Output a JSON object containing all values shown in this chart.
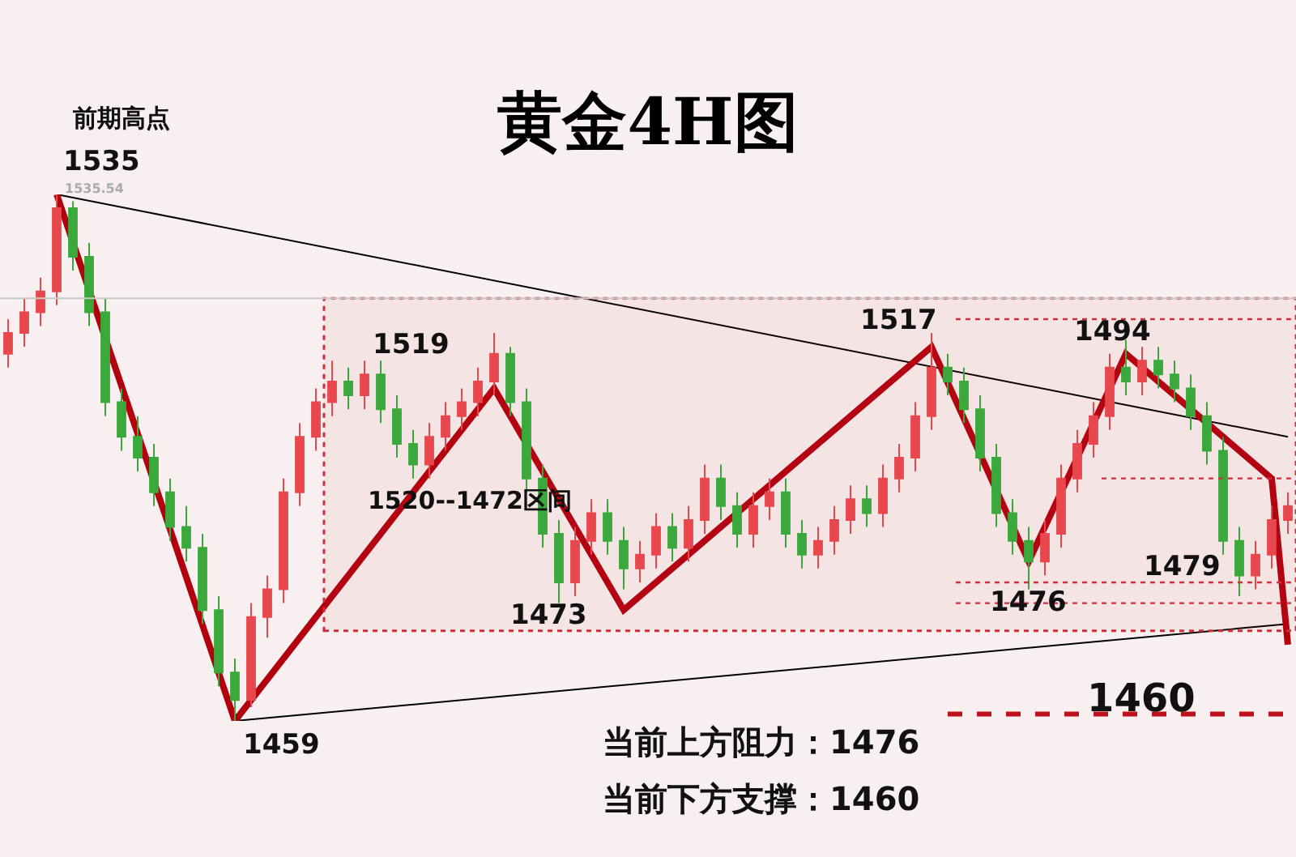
{
  "chart_data": {
    "type": "candlestick",
    "title": "黄金4H图",
    "categories": [
      null,
      null,
      null,
      null,
      null,
      null,
      null,
      null,
      null,
      null,
      null,
      null,
      null,
      null,
      null,
      null,
      null,
      null,
      null,
      null,
      null,
      null,
      null,
      null,
      null,
      null,
      null,
      null,
      null,
      null,
      null,
      null,
      null,
      null,
      null,
      null,
      null,
      null,
      null,
      null,
      null,
      null,
      null,
      null,
      null,
      null,
      null,
      null,
      null,
      null,
      null,
      null,
      null,
      null,
      null,
      null,
      null,
      null,
      null,
      null,
      null,
      null,
      null,
      null,
      null,
      null,
      null,
      null,
      null,
      null,
      null,
      null,
      null,
      null,
      null,
      null,
      null,
      null,
      null,
      null
    ],
    "series": [
      {
        "ohlc": [
          [
            1512,
            1517,
            1510,
            1515
          ],
          [
            1515,
            1520,
            1513,
            1518
          ],
          [
            1518,
            1523,
            1516,
            1521
          ],
          [
            1521,
            1535,
            1519,
            1533
          ],
          [
            1533,
            1534,
            1524,
            1526
          ],
          [
            1526,
            1528,
            1516,
            1518
          ],
          [
            1518,
            1520,
            1503,
            1505
          ],
          [
            1505,
            1507,
            1498,
            1500
          ],
          [
            1500,
            1503,
            1495,
            1497
          ],
          [
            1497,
            1499,
            1490,
            1492
          ],
          [
            1492,
            1494,
            1485,
            1487
          ],
          [
            1487,
            1490,
            1482,
            1484
          ],
          [
            1484,
            1486,
            1473,
            1475
          ],
          [
            1475,
            1477,
            1464,
            1466
          ],
          [
            1466,
            1468,
            1459,
            1462
          ],
          [
            1462,
            1476,
            1461,
            1474
          ],
          [
            1474,
            1480,
            1471,
            1478
          ],
          [
            1478,
            1494,
            1476,
            1492
          ],
          [
            1492,
            1502,
            1490,
            1500
          ],
          [
            1500,
            1507,
            1498,
            1505
          ],
          [
            1505,
            1511,
            1503,
            1508
          ],
          [
            1508,
            1510,
            1504,
            1506
          ],
          [
            1506,
            1511,
            1504,
            1509
          ],
          [
            1509,
            1511,
            1502,
            1504
          ],
          [
            1504,
            1506,
            1497,
            1499
          ],
          [
            1499,
            1501,
            1494,
            1496
          ],
          [
            1496,
            1502,
            1494,
            1500
          ],
          [
            1500,
            1505,
            1498,
            1503
          ],
          [
            1503,
            1507,
            1501,
            1505
          ],
          [
            1505,
            1510,
            1503,
            1508
          ],
          [
            1508,
            1515,
            1506,
            1512
          ],
          [
            1512,
            1513,
            1503,
            1505
          ],
          [
            1505,
            1507,
            1492,
            1494
          ],
          [
            1494,
            1496,
            1484,
            1486
          ],
          [
            1486,
            1488,
            1476,
            1479
          ],
          [
            1479,
            1487,
            1477,
            1485
          ],
          [
            1485,
            1491,
            1483,
            1489
          ],
          [
            1489,
            1491,
            1483,
            1485
          ],
          [
            1485,
            1487,
            1478,
            1481
          ],
          [
            1481,
            1485,
            1479,
            1483
          ],
          [
            1483,
            1489,
            1481,
            1487
          ],
          [
            1487,
            1489,
            1482,
            1484
          ],
          [
            1484,
            1490,
            1482,
            1488
          ],
          [
            1488,
            1496,
            1486,
            1494
          ],
          [
            1494,
            1496,
            1488,
            1490
          ],
          [
            1490,
            1492,
            1484,
            1486
          ],
          [
            1486,
            1492,
            1484,
            1490
          ],
          [
            1490,
            1494,
            1488,
            1492
          ],
          [
            1492,
            1494,
            1484,
            1486
          ],
          [
            1486,
            1488,
            1481,
            1483
          ],
          [
            1483,
            1487,
            1481,
            1485
          ],
          [
            1485,
            1490,
            1483,
            1488
          ],
          [
            1488,
            1493,
            1486,
            1491
          ],
          [
            1491,
            1493,
            1487,
            1489
          ],
          [
            1489,
            1496,
            1487,
            1494
          ],
          [
            1494,
            1499,
            1492,
            1497
          ],
          [
            1497,
            1505,
            1495,
            1503
          ],
          [
            1503,
            1515,
            1501,
            1510
          ],
          [
            1510,
            1512,
            1506,
            1508
          ],
          [
            1508,
            1510,
            1502,
            1504
          ],
          [
            1504,
            1506,
            1495,
            1497
          ],
          [
            1497,
            1499,
            1487,
            1489
          ],
          [
            1489,
            1491,
            1483,
            1485
          ],
          [
            1485,
            1487,
            1478,
            1482
          ],
          [
            1482,
            1488,
            1480,
            1486
          ],
          [
            1486,
            1496,
            1484,
            1494
          ],
          [
            1494,
            1501,
            1492,
            1499
          ],
          [
            1499,
            1505,
            1497,
            1503
          ],
          [
            1503,
            1512,
            1501,
            1510
          ],
          [
            1510,
            1514,
            1506,
            1508
          ],
          [
            1508,
            1513,
            1506,
            1511
          ],
          [
            1511,
            1513,
            1507,
            1509
          ],
          [
            1509,
            1511,
            1505,
            1507
          ],
          [
            1507,
            1509,
            1501,
            1503
          ],
          [
            1503,
            1505,
            1496,
            1498
          ],
          [
            1498,
            1500,
            1483,
            1485
          ],
          [
            1485,
            1487,
            1477,
            1480
          ],
          [
            1480,
            1485,
            1478,
            1483
          ],
          [
            1483,
            1490,
            1481,
            1488
          ],
          [
            1488,
            1492,
            1486,
            1490
          ]
        ],
        "colors": [
          "#e8474d",
          "#e8474d",
          "#e8474d",
          "#e8474d",
          "#3aa83a",
          "#3aa83a",
          "#3aa83a",
          "#3aa83a",
          "#3aa83a",
          "#3aa83a",
          "#3aa83a",
          "#3aa83a",
          "#3aa83a",
          "#3aa83a",
          "#3aa83a",
          "#e8474d",
          "#e8474d",
          "#e8474d",
          "#e8474d",
          "#e8474d",
          "#e8474d",
          "#3aa83a",
          "#e8474d",
          "#3aa83a",
          "#3aa83a",
          "#3aa83a",
          "#e8474d",
          "#e8474d",
          "#e8474d",
          "#e8474d",
          "#e8474d",
          "#3aa83a",
          "#3aa83a",
          "#3aa83a",
          "#3aa83a",
          "#e8474d",
          "#e8474d",
          "#3aa83a",
          "#3aa83a",
          "#e8474d",
          "#e8474d",
          "#3aa83a",
          "#e8474d",
          "#e8474d",
          "#3aa83a",
          "#3aa83a",
          "#e8474d",
          "#e8474d",
          "#3aa83a",
          "#3aa83a",
          "#e8474d",
          "#e8474d",
          "#e8474d",
          "#3aa83a",
          "#e8474d",
          "#e8474d",
          "#e8474d",
          "#e8474d",
          "#3aa83a",
          "#3aa83a",
          "#3aa83a",
          "#3aa83a",
          "#3aa83a",
          "#3aa83a",
          "#e8474d",
          "#e8474d",
          "#e8474d",
          "#e8474d",
          "#e8474d",
          "#3aa83a",
          "#e8474d",
          "#3aa83a",
          "#3aa83a",
          "#3aa83a",
          "#3aa83a",
          "#3aa83a",
          "#3aa83a",
          "#e8474d",
          "#e8474d",
          "#e8474d"
        ]
      },
      {
        "type": "line",
        "color": "#000000",
        "values": [
          null,
          null,
          null,
          1535,
          null,
          null,
          null,
          null,
          null,
          null,
          null,
          null,
          null,
          null,
          null,
          null,
          null,
          null,
          null,
          null,
          null,
          null,
          null,
          null,
          null,
          null,
          null,
          null,
          null,
          null,
          null,
          null,
          null,
          null,
          null,
          null,
          null,
          null,
          null,
          null,
          null,
          null,
          null,
          null,
          null,
          null,
          null,
          null,
          null,
          null,
          null,
          null,
          null,
          null,
          null,
          null,
          null,
          null,
          null,
          null,
          null,
          null,
          null,
          null,
          null,
          null,
          null,
          null,
          null,
          null,
          null,
          null,
          null,
          null,
          null,
          null,
          null,
          null,
          null,
          1500
        ]
      },
      {
        "type": "line",
        "color": "#000000",
        "values": [
          null,
          null,
          null,
          null,
          null,
          null,
          null,
          null,
          null,
          null,
          null,
          null,
          null,
          null,
          1459,
          null,
          null,
          null,
          null,
          null,
          null,
          null,
          null,
          null,
          null,
          null,
          null,
          null,
          null,
          null,
          null,
          null,
          null,
          null,
          null,
          null,
          null,
          null,
          null,
          null,
          null,
          null,
          null,
          null,
          null,
          null,
          null,
          null,
          null,
          null,
          null,
          null,
          null,
          null,
          null,
          null,
          null,
          null,
          null,
          null,
          null,
          null,
          null,
          null,
          null,
          null,
          null,
          null,
          null,
          null,
          null,
          null,
          null,
          null,
          null,
          null,
          null,
          null,
          null,
          1473
        ]
      },
      {
        "type": "line",
        "color": "#b3000f",
        "values": [
          null,
          null,
          null,
          1535,
          null,
          null,
          null,
          null,
          null,
          null,
          null,
          null,
          null,
          null,
          1459,
          null,
          null,
          null,
          null,
          null,
          null,
          null,
          null,
          null,
          null,
          null,
          null,
          null,
          null,
          null,
          1507,
          null,
          null,
          null,
          null,
          null,
          null,
          null,
          1475,
          null,
          null,
          null,
          null,
          null,
          null,
          null,
          null,
          null,
          null,
          null,
          null,
          null,
          null,
          null,
          null,
          null,
          null,
          1513,
          null,
          null,
          null,
          null,
          null,
          1482,
          null,
          null,
          null,
          null,
          null,
          1512,
          null,
          null,
          null,
          null,
          null,
          null,
          null,
          null,
          1494,
          1470
        ]
      }
    ],
    "bands": [
      {
        "axis": "y",
        "from": 1472,
        "to": 1520,
        "label": "1520--1472区间",
        "color": "#d0303a"
      }
    ],
    "ref_lines": [
      {
        "axis": "y",
        "value": 1520,
        "color": "#c8c8c8",
        "line_style": "solid"
      },
      {
        "axis": "y",
        "value": 1517,
        "color": "#d0303a",
        "line_style": "dotted"
      },
      {
        "axis": "y",
        "value": 1494,
        "color": "#d0303a",
        "line_style": "dotted"
      },
      {
        "axis": "y",
        "value": 1479,
        "color": "#d0303a",
        "line_style": "dotted"
      },
      {
        "axis": "y",
        "value": 1476,
        "color": "#d0303a",
        "line_style": "dotted"
      },
      {
        "axis": "y",
        "value": 1460,
        "color": "#c0101a",
        "line_style": "dashed"
      }
    ],
    "annotations": [
      "前期高点",
      "1535",
      "1535.54",
      "1519",
      "1473",
      "1459",
      "1517",
      "1494",
      "1476",
      "1479",
      "1460",
      "当前上方阻力：1476",
      "当前下方支撑：1460"
    ],
    "tick_labels": false
  }
}
